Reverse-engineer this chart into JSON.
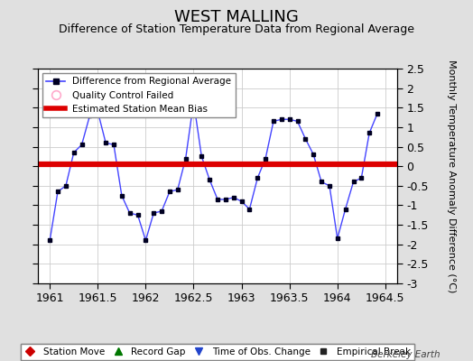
{
  "title": "WEST MALLING",
  "subtitle": "Difference of Station Temperature Data from Regional Average",
  "ylabel_right": "Monthly Temperature Anomaly Difference (°C)",
  "xlim": [
    1960.875,
    1964.625
  ],
  "ylim": [
    -3.0,
    2.5
  ],
  "yticks": [
    -3,
    -2.5,
    -2,
    -1.5,
    -1,
    -0.5,
    0,
    0.5,
    1,
    1.5,
    2,
    2.5
  ],
  "xticks": [
    1961,
    1961.5,
    1962,
    1962.5,
    1963,
    1963.5,
    1964,
    1964.5
  ],
  "bias_y": 0.05,
  "background_color": "#e0e0e0",
  "plot_bg_color": "#ffffff",
  "line_color": "#4444ff",
  "marker_color": "#000022",
  "bias_color": "#dd0000",
  "x_data": [
    1961.0,
    1961.083,
    1961.167,
    1961.25,
    1961.333,
    1961.417,
    1961.5,
    1961.583,
    1961.667,
    1961.75,
    1961.833,
    1961.917,
    1962.0,
    1962.083,
    1962.167,
    1962.25,
    1962.333,
    1962.417,
    1962.5,
    1962.583,
    1962.667,
    1962.75,
    1962.833,
    1962.917,
    1963.0,
    1963.083,
    1963.167,
    1963.25,
    1963.333,
    1963.417,
    1963.5,
    1963.583,
    1963.667,
    1963.75,
    1963.833,
    1963.917,
    1964.0,
    1964.083,
    1964.167,
    1964.25,
    1964.333,
    1964.417
  ],
  "y_data": [
    -1.9,
    -0.65,
    -0.5,
    0.35,
    0.55,
    1.3,
    1.4,
    0.6,
    0.55,
    -0.75,
    -1.2,
    -1.25,
    -1.9,
    -1.2,
    -1.15,
    -0.65,
    -0.6,
    0.2,
    1.65,
    0.25,
    -0.35,
    -0.85,
    -0.85,
    -0.8,
    -0.9,
    -1.1,
    -0.3,
    0.2,
    1.15,
    1.2,
    1.2,
    1.15,
    0.7,
    0.3,
    -0.4,
    -0.5,
    -1.85,
    -1.1,
    -0.4,
    -0.3,
    0.85,
    1.35
  ],
  "watermark": "Berkeley Earth",
  "grid_color": "#cccccc",
  "legend_top_line_label": "Difference from Regional Average",
  "legend_top_qc_label": "Quality Control Failed",
  "legend_top_bias_label": "Estimated Station Mean Bias",
  "legend_bot_sm_label": "Station Move",
  "legend_bot_rg_label": "Record Gap",
  "legend_bot_oc_label": "Time of Obs. Change",
  "legend_bot_eb_label": "Empirical Break",
  "title_fontsize": 13,
  "subtitle_fontsize": 9,
  "tick_fontsize": 9,
  "ylabel_fontsize": 8
}
